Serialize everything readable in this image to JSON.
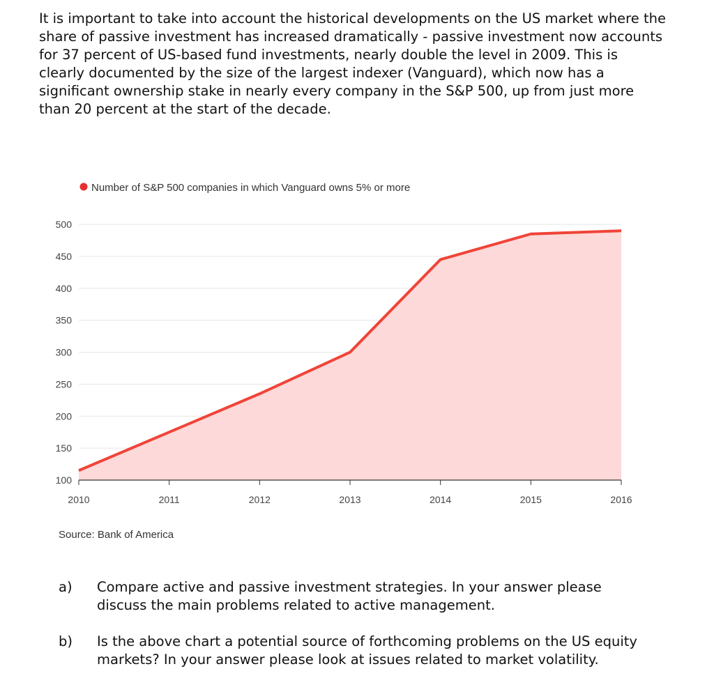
{
  "intro": {
    "paragraph": "It is important to take into account the historical developments on the US market where the share of passive investment has increased dramatically - passive investment now accounts for 37 percent of US-based fund investments, nearly double the level in 2009.  This is clearly documented by the size of the largest indexer (Vanguard), which now has a significant ownership stake in nearly every company in the S&P 500, up from just more than 20 percent at the start of the decade."
  },
  "chart_data": {
    "type": "area",
    "title": "",
    "legend": "Number of S&P 500 companies in which Vanguard owns 5% or more",
    "x": [
      "2010",
      "2011",
      "2012",
      "2013",
      "2014",
      "2015",
      "2016"
    ],
    "series": [
      {
        "name": "Number of S&P 500 companies in which Vanguard owns 5% or more",
        "values": [
          115,
          175,
          235,
          300,
          445,
          485,
          490
        ]
      }
    ],
    "yticks": [
      100,
      150,
      200,
      250,
      300,
      350,
      400,
      450,
      500
    ],
    "ylim": [
      100,
      500
    ],
    "grid": true,
    "source": "Source: Bank of America",
    "colors": {
      "line": "#f04438",
      "fill": "#fdd9d9",
      "grid": "#e6e6e6",
      "marker": "#e82f2f"
    }
  },
  "questions": [
    {
      "label": "a)",
      "text": "Compare active and passive investment strategies.  In your answer please discuss the main problems related to active management."
    },
    {
      "label": "b)",
      "text": "Is the above chart a potential source of forthcoming problems on the US equity markets? In your answer please look at issues related to market volatility."
    }
  ]
}
